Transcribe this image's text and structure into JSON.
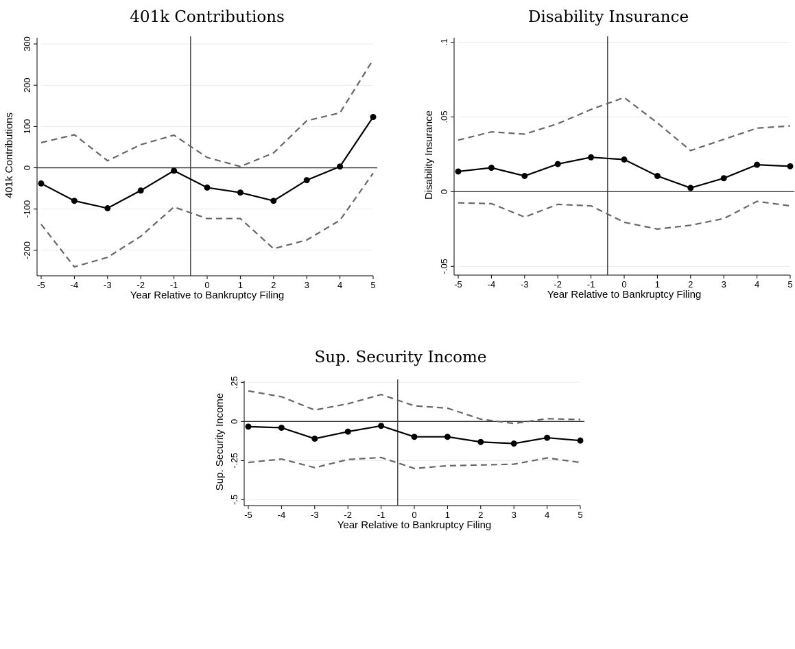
{
  "chart_data": [
    {
      "type": "line",
      "title": "401k Contributions",
      "xlabel": "Year Relative to Bankruptcy Filing",
      "ylabel": "401k Contributions",
      "x": [
        -5,
        -4,
        -3,
        -2,
        -1,
        0,
        1,
        2,
        3,
        4,
        5
      ],
      "xticks": [
        "-5",
        "-4",
        "-3",
        "-2",
        "-1",
        "0",
        "1",
        "2",
        "3",
        "4",
        "5"
      ],
      "yticks": [
        {
          "value": -200,
          "label": "-200"
        },
        {
          "value": -100,
          "label": "-100"
        },
        {
          "value": 0,
          "label": "0"
        },
        {
          "value": 100,
          "label": "100"
        },
        {
          "value": 200,
          "label": "200"
        },
        {
          "value": 300,
          "label": "300"
        }
      ],
      "xlim": [
        -5,
        5
      ],
      "ylim": [
        -255,
        315
      ],
      "vertical_reference_x": -0.5,
      "horizontal_reference_y": 0,
      "grid": true,
      "series": [
        {
          "role": "estimate",
          "values": [
            -38,
            -80,
            -98,
            -55,
            -7,
            -48,
            -60,
            -80,
            -30,
            3,
            123
          ]
        },
        {
          "role": "upper-ci",
          "values": [
            61,
            80,
            17,
            56,
            79,
            25,
            3,
            36,
            114,
            133,
            262
          ]
        },
        {
          "role": "lower-ci",
          "values": [
            -137,
            -240,
            -217,
            -166,
            -95,
            -123,
            -123,
            -196,
            -175,
            -127,
            -13
          ]
        }
      ]
    },
    {
      "type": "line",
      "title": "Disability Insurance",
      "xlabel": "Year Relative to Bankruptcy Filing",
      "ylabel": "Disability Insurance",
      "x": [
        -5,
        -4,
        -3,
        -2,
        -1,
        0,
        1,
        2,
        3,
        4,
        5
      ],
      "xticks": [
        "-5",
        "-4",
        "-3",
        "-2",
        "-1",
        "0",
        "1",
        "2",
        "3",
        "4",
        "5"
      ],
      "yticks": [
        {
          "value": -0.05,
          "label": "-.05"
        },
        {
          "value": 0,
          "label": "0"
        },
        {
          "value": 0.05,
          "label": ".05"
        },
        {
          "value": 0.1,
          "label": ".1"
        }
      ],
      "xlim": [
        -5,
        5
      ],
      "ylim": [
        -0.054,
        0.103
      ],
      "vertical_reference_x": -0.5,
      "horizontal_reference_y": 0,
      "grid": true,
      "series": [
        {
          "role": "estimate",
          "values": [
            0.0135,
            0.016,
            0.0105,
            0.0185,
            0.023,
            0.0215,
            0.0105,
            0.0025,
            0.009,
            0.018,
            0.017
          ]
        },
        {
          "role": "upper-ci",
          "values": [
            0.0345,
            0.04,
            0.0385,
            0.0455,
            0.055,
            0.063,
            0.046,
            0.0275,
            0.035,
            0.0425,
            0.044
          ]
        },
        {
          "role": "lower-ci",
          "values": [
            -0.0075,
            -0.008,
            -0.017,
            -0.0085,
            -0.0095,
            -0.0205,
            -0.025,
            -0.0225,
            -0.018,
            -0.0065,
            -0.0095
          ]
        }
      ]
    },
    {
      "type": "line",
      "title": "Sup. Security Income",
      "xlabel": "Year Relative to Bankruptcy Filing",
      "ylabel": "Sup. Security Income",
      "x": [
        -5,
        -4,
        -3,
        -2,
        -1,
        0,
        1,
        2,
        3,
        4,
        5
      ],
      "xticks": [
        "-5",
        "-4",
        "-3",
        "-2",
        "-1",
        "0",
        "1",
        "2",
        "3",
        "4",
        "5"
      ],
      "yticks": [
        {
          "value": -0.5,
          "label": "-.5"
        },
        {
          "value": -0.25,
          "label": "-.25"
        },
        {
          "value": 0,
          "label": "0"
        },
        {
          "value": 0.25,
          "label": ".25"
        }
      ],
      "xlim": [
        -5,
        5
      ],
      "ylim": [
        -0.52,
        0.26
      ],
      "vertical_reference_x": -0.5,
      "horizontal_reference_y": 0,
      "grid": true,
      "series": [
        {
          "role": "estimate",
          "values": [
            -0.033,
            -0.04,
            -0.11,
            -0.065,
            -0.028,
            -0.098,
            -0.098,
            -0.131,
            -0.141,
            -0.104,
            -0.122
          ]
        },
        {
          "role": "upper-ci",
          "values": [
            0.195,
            0.158,
            0.073,
            0.113,
            0.172,
            0.1,
            0.085,
            0.015,
            -0.013,
            0.018,
            0.012
          ]
        },
        {
          "role": "lower-ci",
          "values": [
            -0.262,
            -0.24,
            -0.295,
            -0.243,
            -0.23,
            -0.3,
            -0.283,
            -0.278,
            -0.273,
            -0.233,
            -0.262
          ]
        }
      ]
    }
  ]
}
